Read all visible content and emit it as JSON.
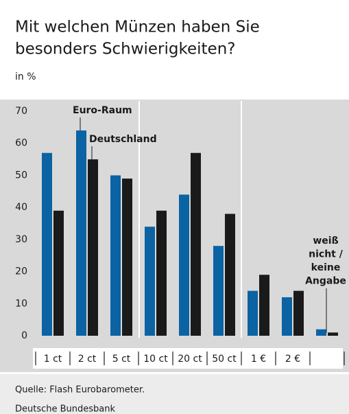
{
  "chart_data": {
    "type": "bar",
    "title_lines": [
      "Mit welchen Münzen haben Sie",
      "besonders Schwierigkeiten?"
    ],
    "subtitle": "in %",
    "categories": [
      "1 ct",
      "2 ct",
      "5 ct",
      "10 ct",
      "20 ct",
      "50 ct",
      "1 €",
      "2 €",
      null
    ],
    "series": [
      {
        "name": "Euro-Raum",
        "color": "#0b63a3",
        "values": [
          57,
          64,
          50,
          34,
          44,
          28,
          14,
          12,
          2
        ]
      },
      {
        "name": "Deutschland",
        "color": "#1a1a1a",
        "values": [
          39,
          55,
          49,
          39,
          57,
          38,
          19,
          14,
          1
        ]
      }
    ],
    "annotation_lines": [
      "weiß",
      "nicht /",
      "keine",
      "Angabe"
    ],
    "ylim": [
      0,
      70
    ],
    "yticks": [
      0,
      10,
      20,
      30,
      40,
      50,
      60,
      70
    ],
    "source_lines": [
      "Quelle: Flash Eurobarometer.",
      "Deutsche Bundesbank"
    ]
  }
}
